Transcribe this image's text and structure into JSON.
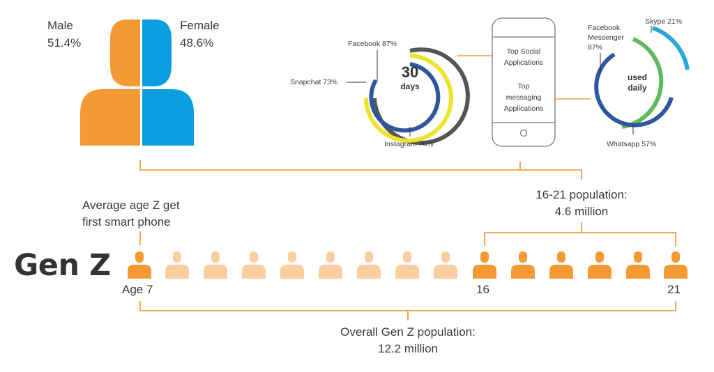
{
  "gender": {
    "male_label": "Male",
    "male_pct": "51.4%",
    "female_label": "Female",
    "female_pct": "48.6%",
    "male_color": "#f39a34",
    "female_color": "#0a9ee0"
  },
  "ring30": {
    "center_main": "30",
    "center_sub": "days",
    "facebook": "Facebook 87%",
    "snapchat": "Snapchat 73%",
    "instagram": "Instagram 70%"
  },
  "phone": {
    "line1": "Top Social",
    "line2": "Applications",
    "line3": "Top",
    "line4": "messaging",
    "line5": "Applications"
  },
  "ringDaily": {
    "center_main": "used",
    "center_sub": "daily",
    "messenger_l1": "Facebook",
    "messenger_l2": "Messenger",
    "messenger_l3": "87%",
    "skype": "Skype 21%",
    "whatsapp": "Whatsapp 57%"
  },
  "population_16_21": {
    "line1": "16-21 population:",
    "line2": "4.6 million"
  },
  "average_age": {
    "line1": "Average age Z get",
    "line2": "first smart phone"
  },
  "title": "Gen Z",
  "timeline": {
    "age_start": "Age 7",
    "age_16": "16",
    "age_21": "21",
    "figures_total": 15
  },
  "overall": {
    "line1": "Overall Gen Z population:",
    "line2": "12.2 million"
  },
  "colors": {
    "orange": "#f39a34",
    "light_orange": "#f9cfa1",
    "blue": "#0a9ee0",
    "navy": "#2f579f",
    "yellow": "#eee32b",
    "dark_gray": "#555555",
    "green": "#5dba5f",
    "light_blue": "#2ba5dc",
    "bracket": "#f0a040"
  }
}
